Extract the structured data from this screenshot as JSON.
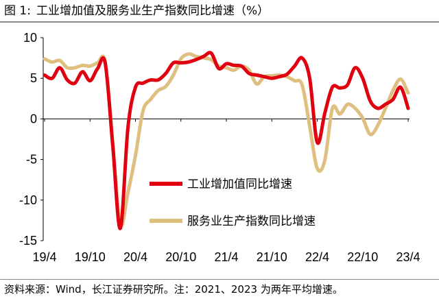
{
  "figure": {
    "label": "图 1:",
    "title": "工业增加值及服务业生产指数同比增速（%）",
    "source": "资料来源：Wind，长江证券研究所。注：2021、2023 为两年平均增速。"
  },
  "chart_data": {
    "type": "line",
    "title": "工业增加值及服务业生产指数同比增速（%）",
    "xlabel": "",
    "ylabel": "",
    "ylim": [
      -15,
      10
    ],
    "yticks": [
      "10",
      "5",
      "0",
      "-5",
      "-10",
      "-15"
    ],
    "xticks": [
      "19/4",
      "19/10",
      "20/4",
      "20/10",
      "21/4",
      "21/10",
      "22/4",
      "22/10",
      "23/4"
    ],
    "grid": false,
    "legend_position": "center",
    "x": [
      "19/4",
      "19/5",
      "19/6",
      "19/7",
      "19/8",
      "19/9",
      "19/10",
      "19/11",
      "19/12",
      "20/1",
      "20/2",
      "20/3",
      "20/4",
      "20/5",
      "20/6",
      "20/7",
      "20/8",
      "20/9",
      "20/10",
      "20/11",
      "20/12",
      "21/1",
      "21/2",
      "21/3",
      "21/4",
      "21/5",
      "21/6",
      "21/7",
      "21/8",
      "21/9",
      "21/10",
      "21/11",
      "21/12",
      "22/1",
      "22/2",
      "22/3",
      "22/4",
      "22/5",
      "22/6",
      "22/7",
      "22/8",
      "22/9",
      "22/10",
      "22/11",
      "22/12",
      "23/1",
      "23/2",
      "23/3",
      "23/4"
    ],
    "series": [
      {
        "name": "工业增加值同比增速",
        "color": "#e00010",
        "values": [
          5.4,
          5.0,
          6.3,
          4.8,
          4.4,
          5.8,
          4.7,
          6.2,
          6.9,
          null,
          -13.5,
          -1.1,
          3.9,
          4.4,
          4.8,
          4.8,
          5.6,
          6.9,
          6.9,
          7.0,
          7.3,
          null,
          8.1,
          6.2,
          6.8,
          6.6,
          6.5,
          5.6,
          5.4,
          5.2,
          5.0,
          5.2,
          5.5,
          null,
          7.5,
          5.0,
          -2.9,
          0.7,
          3.9,
          3.8,
          4.2,
          6.3,
          5.0,
          2.2,
          1.3,
          null,
          2.4,
          3.9,
          1.3
        ],
        "curve": [
          5.4,
          5.0,
          6.3,
          4.8,
          4.4,
          5.8,
          4.7,
          6.2,
          6.9,
          -3.3,
          -13.5,
          -1.1,
          3.9,
          4.4,
          4.8,
          4.8,
          5.6,
          6.9,
          6.9,
          7.0,
          7.3,
          7.7,
          8.1,
          6.2,
          6.8,
          6.6,
          6.5,
          5.6,
          5.4,
          5.2,
          5.0,
          5.2,
          5.5,
          6.5,
          7.5,
          5.0,
          -2.9,
          0.7,
          3.9,
          3.8,
          4.2,
          6.3,
          5.0,
          2.2,
          1.3,
          1.8,
          2.4,
          3.9,
          1.3
        ]
      },
      {
        "name": "服务业生产指数同比增速",
        "color": "#dfbf80",
        "values": [
          7.4,
          7.0,
          7.2,
          6.3,
          6.3,
          6.6,
          6.5,
          6.9,
          7.0,
          null,
          -13.0,
          -9.1,
          -4.5,
          1.0,
          2.4,
          3.5,
          4.0,
          5.4,
          7.4,
          8.0,
          7.7,
          null,
          7.3,
          6.5,
          6.3,
          6.0,
          6.5,
          6.0,
          4.3,
          5.2,
          5.3,
          5.4,
          5.2,
          null,
          4.2,
          -0.9,
          -6.1,
          -5.1,
          1.3,
          0.6,
          1.8,
          1.3,
          0.1,
          -1.9,
          -0.8,
          null,
          3.5,
          4.9,
          3.2
        ],
        "curve": [
          7.4,
          7.0,
          7.2,
          6.3,
          6.3,
          6.6,
          6.5,
          6.9,
          7.0,
          -3.0,
          -13.0,
          -9.1,
          -4.5,
          1.0,
          2.4,
          3.5,
          4.0,
          5.4,
          7.4,
          8.0,
          7.7,
          7.5,
          7.3,
          6.5,
          6.3,
          6.0,
          6.5,
          6.0,
          4.3,
          5.2,
          5.3,
          5.4,
          5.2,
          4.7,
          4.2,
          -0.9,
          -6.1,
          -5.1,
          1.3,
          0.6,
          1.8,
          1.3,
          0.1,
          -1.9,
          -0.8,
          1.3,
          3.5,
          4.9,
          3.2
        ]
      }
    ]
  }
}
